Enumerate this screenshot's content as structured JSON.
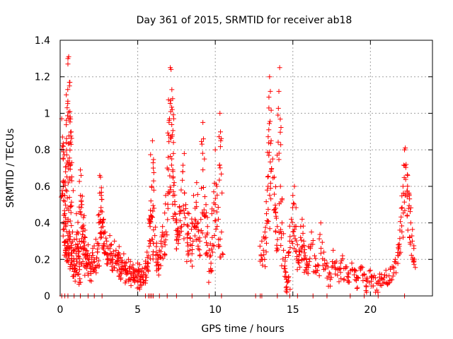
{
  "chart_data": {
    "type": "scatter",
    "title": "Day 361 of 2015, SRMTID for receiver ab18",
    "xlabel": "GPS time / hours",
    "ylabel": "SRMTID / TECUs",
    "xlim": [
      0,
      24
    ],
    "ylim": [
      0,
      1.4
    ],
    "xticks": [
      0,
      5,
      10,
      15,
      20
    ],
    "xtick_labels": [
      "0",
      "5",
      "10",
      "15",
      "20"
    ],
    "yticks": [
      0,
      0.2,
      0.4,
      0.6,
      0.8,
      1,
      1.2,
      1.4
    ],
    "ytick_labels": [
      "0",
      "0.2",
      "0.4",
      "0.6",
      "0.8",
      "1",
      "1.2",
      "1.4"
    ],
    "grid": true,
    "marker": "plus",
    "marker_color": "#ff0000",
    "series": [
      {
        "name": "SRMTID",
        "points": [
          [
            0.1,
            0.97
          ],
          [
            0.15,
            0.87
          ],
          [
            0.2,
            0.75
          ],
          [
            0.25,
            0.62
          ],
          [
            0.3,
            0.55
          ],
          [
            0.35,
            0.68
          ],
          [
            0.4,
            0.84
          ],
          [
            0.45,
            1.03
          ],
          [
            0.5,
            1.3
          ],
          [
            0.5,
            1.27
          ],
          [
            0.55,
            1.31
          ],
          [
            0.6,
            1.17
          ],
          [
            0.6,
            1.15
          ],
          [
            0.65,
            0.98
          ],
          [
            0.7,
            0.83
          ],
          [
            0.75,
            0.73
          ],
          [
            0.3,
            0.45
          ],
          [
            0.35,
            0.38
          ],
          [
            0.4,
            0.3
          ],
          [
            0.45,
            0.26
          ],
          [
            0.5,
            0.33
          ],
          [
            0.55,
            0.47
          ],
          [
            0.6,
            0.54
          ],
          [
            0.65,
            0.41
          ],
          [
            0.7,
            0.29
          ],
          [
            0.75,
            0.22
          ],
          [
            0.8,
            0.35
          ],
          [
            0.85,
            0.25
          ],
          [
            0.9,
            0.19
          ],
          [
            0.95,
            0.15
          ],
          [
            1.0,
            0.28
          ],
          [
            1.05,
            0.45
          ],
          [
            1.1,
            0.35
          ],
          [
            1.15,
            0.22
          ],
          [
            1.2,
            0.12
          ],
          [
            1.25,
            0.3
          ],
          [
            1.3,
            0.69
          ],
          [
            1.35,
            0.66
          ],
          [
            1.4,
            0.5
          ],
          [
            1.45,
            0.38
          ],
          [
            1.5,
            0.3
          ],
          [
            1.55,
            0.44
          ],
          [
            1.6,
            0.36
          ],
          [
            1.65,
            0.25
          ],
          [
            1.7,
            0.18
          ],
          [
            1.8,
            0.28
          ],
          [
            1.9,
            0.22
          ],
          [
            2.0,
            0.15
          ],
          [
            2.1,
            0.26
          ],
          [
            2.2,
            0.2
          ],
          [
            2.3,
            0.31
          ],
          [
            2.4,
            0.24
          ],
          [
            2.5,
            0.4
          ],
          [
            2.55,
            0.66
          ],
          [
            2.6,
            0.65
          ],
          [
            2.65,
            0.55
          ],
          [
            2.7,
            0.46
          ],
          [
            2.75,
            0.38
          ],
          [
            2.8,
            0.42
          ],
          [
            2.9,
            0.35
          ],
          [
            3.0,
            0.3
          ],
          [
            3.1,
            0.26
          ],
          [
            3.2,
            0.33
          ],
          [
            3.3,
            0.28
          ],
          [
            3.4,
            0.22
          ],
          [
            3.5,
            0.3
          ],
          [
            3.6,
            0.25
          ],
          [
            3.7,
            0.19
          ],
          [
            3.8,
            0.27
          ],
          [
            3.9,
            0.21
          ],
          [
            4.0,
            0.16
          ],
          [
            4.1,
            0.23
          ],
          [
            4.2,
            0.18
          ],
          [
            4.3,
            0.14
          ],
          [
            4.4,
            0.2
          ],
          [
            4.5,
            0.16
          ],
          [
            4.6,
            0.12
          ],
          [
            4.7,
            0.17
          ],
          [
            4.8,
            0.14
          ],
          [
            4.9,
            0.1
          ],
          [
            5.0,
            0.18
          ],
          [
            5.1,
            0.13
          ],
          [
            5.2,
            0.09
          ],
          [
            5.3,
            0.15
          ],
          [
            5.4,
            0.12
          ],
          [
            5.5,
            0.19
          ],
          [
            5.6,
            0.24
          ],
          [
            5.7,
            0.22
          ],
          [
            5.8,
            0.38
          ],
          [
            5.85,
            0.52
          ],
          [
            5.9,
            0.6
          ],
          [
            5.95,
            0.85
          ],
          [
            6.0,
            0.7
          ],
          [
            6.05,
            0.48
          ],
          [
            6.1,
            0.33
          ],
          [
            6.2,
            0.27
          ],
          [
            6.3,
            0.2
          ],
          [
            6.4,
            0.25
          ],
          [
            6.5,
            0.3
          ],
          [
            6.6,
            0.38
          ],
          [
            6.7,
            0.34
          ],
          [
            6.8,
            0.55
          ],
          [
            6.9,
            0.7
          ],
          [
            7.0,
            0.88
          ],
          [
            7.05,
            0.97
          ],
          [
            7.1,
            1.25
          ],
          [
            7.15,
            1.24
          ],
          [
            7.2,
            1.13
          ],
          [
            7.25,
            1.08
          ],
          [
            7.3,
            0.78
          ],
          [
            7.35,
            0.62
          ],
          [
            7.4,
            0.5
          ],
          [
            7.5,
            0.42
          ],
          [
            7.6,
            0.37
          ],
          [
            7.7,
            0.45
          ],
          [
            7.8,
            0.58
          ],
          [
            7.9,
            0.68
          ],
          [
            8.0,
            0.78
          ],
          [
            8.1,
            0.5
          ],
          [
            8.2,
            0.32
          ],
          [
            8.3,
            0.45
          ],
          [
            8.4,
            0.28
          ],
          [
            8.5,
            0.4
          ],
          [
            8.6,
            0.55
          ],
          [
            8.7,
            0.48
          ],
          [
            8.8,
            0.62
          ],
          [
            8.9,
            0.4
          ],
          [
            9.0,
            0.3
          ],
          [
            9.1,
            0.59
          ],
          [
            9.2,
            0.95
          ],
          [
            9.3,
            0.75
          ],
          [
            9.4,
            0.5
          ],
          [
            9.5,
            0.38
          ],
          [
            9.6,
            0.25
          ],
          [
            9.7,
            0.15
          ],
          [
            9.8,
            0.32
          ],
          [
            9.9,
            0.57
          ],
          [
            10.0,
            0.8
          ],
          [
            10.1,
            0.6
          ],
          [
            10.2,
            0.42
          ],
          [
            10.3,
            1.0
          ],
          [
            10.35,
            0.85
          ],
          [
            10.4,
            0.35
          ],
          [
            13.0,
            0.3
          ],
          [
            13.1,
            0.25
          ],
          [
            13.2,
            0.35
          ],
          [
            13.3,
            0.45
          ],
          [
            13.4,
            0.6
          ],
          [
            13.45,
            0.91
          ],
          [
            13.5,
            1.2
          ],
          [
            13.55,
            1.12
          ],
          [
            13.6,
            0.85
          ],
          [
            13.7,
            0.75
          ],
          [
            13.8,
            0.65
          ],
          [
            13.9,
            0.48
          ],
          [
            14.0,
            0.38
          ],
          [
            14.1,
            1.12
          ],
          [
            14.15,
            1.25
          ],
          [
            14.2,
            0.6
          ],
          [
            14.3,
            0.4
          ],
          [
            14.4,
            0.25
          ],
          [
            14.5,
            0.15
          ],
          [
            14.6,
            0.05
          ],
          [
            14.7,
            0.1
          ],
          [
            14.8,
            0.3
          ],
          [
            14.9,
            0.42
          ],
          [
            15.0,
            0.55
          ],
          [
            15.1,
            0.6
          ],
          [
            15.2,
            0.38
          ],
          [
            15.3,
            0.28
          ],
          [
            15.4,
            0.22
          ],
          [
            15.5,
            0.32
          ],
          [
            15.6,
            0.42
          ],
          [
            15.7,
            0.3
          ],
          [
            15.8,
            0.22
          ],
          [
            15.9,
            0.18
          ],
          [
            16.0,
            0.27
          ],
          [
            16.2,
            0.35
          ],
          [
            16.4,
            0.22
          ],
          [
            16.6,
            0.17
          ],
          [
            16.8,
            0.4
          ],
          [
            17.0,
            0.24
          ],
          [
            17.2,
            0.18
          ],
          [
            17.4,
            0.12
          ],
          [
            17.6,
            0.25
          ],
          [
            17.8,
            0.19
          ],
          [
            18.0,
            0.15
          ],
          [
            18.2,
            0.22
          ],
          [
            18.4,
            0.16
          ],
          [
            18.6,
            0.12
          ],
          [
            18.8,
            0.18
          ],
          [
            19.0,
            0.14
          ],
          [
            19.2,
            0.1
          ],
          [
            19.4,
            0.16
          ],
          [
            19.6,
            0.12
          ],
          [
            19.8,
            0.08
          ],
          [
            20.0,
            0.14
          ],
          [
            20.2,
            0.1
          ],
          [
            20.4,
            0.07
          ],
          [
            20.6,
            0.12
          ],
          [
            20.8,
            0.09
          ],
          [
            21.0,
            0.14
          ],
          [
            21.2,
            0.11
          ],
          [
            21.4,
            0.16
          ],
          [
            21.6,
            0.2
          ],
          [
            21.8,
            0.28
          ],
          [
            21.9,
            0.36
          ],
          [
            22.0,
            0.48
          ],
          [
            22.1,
            0.6
          ],
          [
            22.2,
            0.8
          ],
          [
            22.25,
            0.81
          ],
          [
            22.3,
            0.72
          ],
          [
            22.4,
            0.66
          ],
          [
            22.5,
            0.55
          ],
          [
            22.6,
            0.4
          ],
          [
            22.7,
            0.3
          ],
          [
            22.8,
            0.26
          ]
        ],
        "points_at_zero_x": [
          0.1,
          0.3,
          0.5,
          0.9,
          1.3,
          1.8,
          2.2,
          2.7,
          5.5,
          5.7,
          5.8,
          5.9,
          6.0,
          6.4,
          6.9,
          7.5,
          8.5,
          9.6,
          10.4,
          12.6,
          12.9,
          13.0,
          14.0,
          14.8,
          15.3,
          16.3,
          17.2,
          18.7,
          19.6,
          20.5,
          22.2
        ]
      }
    ]
  }
}
